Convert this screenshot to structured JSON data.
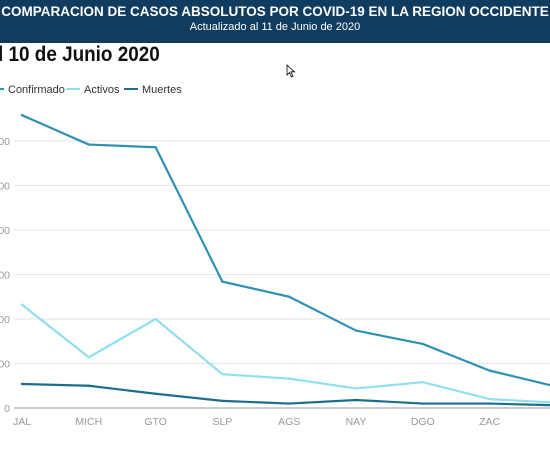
{
  "header": {
    "title": "COMPARACION DE CASOS ABSOLUTOS POR COVID-19 EN LA REGION OCCIDENTE",
    "subtitle": "Actualizado al 11 de Junio de 2020"
  },
  "chart_title": "l 10 de Junio 2020",
  "legend": [
    {
      "label": "Confirmado",
      "color": "#2e92b4"
    },
    {
      "label": "Activos",
      "color": "#8fe0ef"
    },
    {
      "label": "Muertes",
      "color": "#1d6d8f"
    }
  ],
  "y_tick_labels": [
    "0",
    "00",
    "00",
    "00",
    "00",
    "00",
    "00"
  ],
  "cursor_icon": "arrow-cursor-icon",
  "chart_data": {
    "type": "line",
    "title": "l 10 de Junio 2020",
    "categories": [
      "JAL",
      "MICH",
      "GTO",
      "SLP",
      "AGS",
      "NAY",
      "DGO",
      "ZAC",
      "C"
    ],
    "ylim": [
      0,
      3000
    ],
    "grid": true,
    "legend_position": "top-left",
    "series": [
      {
        "name": "Confirmado",
        "color": "#2e92b4",
        "values": [
          3290,
          2960,
          2930,
          1420,
          1250,
          870,
          720,
          420,
          240
        ]
      },
      {
        "name": "Activos",
        "color": "#8fe0ef",
        "values": [
          1160,
          570,
          1000,
          380,
          330,
          220,
          290,
          100,
          60
        ]
      },
      {
        "name": "Muertes",
        "color": "#1d6d8f",
        "values": [
          270,
          250,
          160,
          80,
          50,
          90,
          50,
          50,
          30
        ]
      }
    ]
  }
}
